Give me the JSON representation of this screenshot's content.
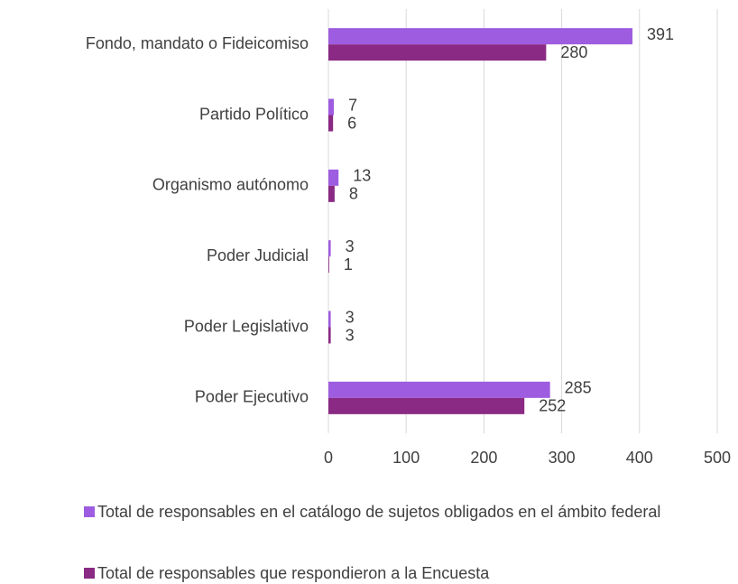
{
  "chart_data": {
    "type": "bar",
    "orientation": "horizontal",
    "categories": [
      "Fondo, mandato o Fideicomiso",
      "Partido Político",
      "Organismo autónomo",
      "Poder Judicial",
      "Poder Legislativo",
      "Poder Ejecutivo"
    ],
    "series": [
      {
        "name": "Total de responsables en el catálogo de sujetos obligados en el ámbito federal",
        "color": "#9e5ce0",
        "values": [
          391,
          7,
          13,
          3,
          3,
          285
        ]
      },
      {
        "name": "Total de responsables que respondieron a la Encuesta",
        "color": "#8a2a84",
        "values": [
          280,
          6,
          8,
          1,
          3,
          252
        ]
      }
    ],
    "xlim": [
      0,
      500
    ],
    "xticks": [
      0,
      100,
      200,
      300,
      400,
      500
    ],
    "grid": true,
    "legend": "bottom"
  }
}
